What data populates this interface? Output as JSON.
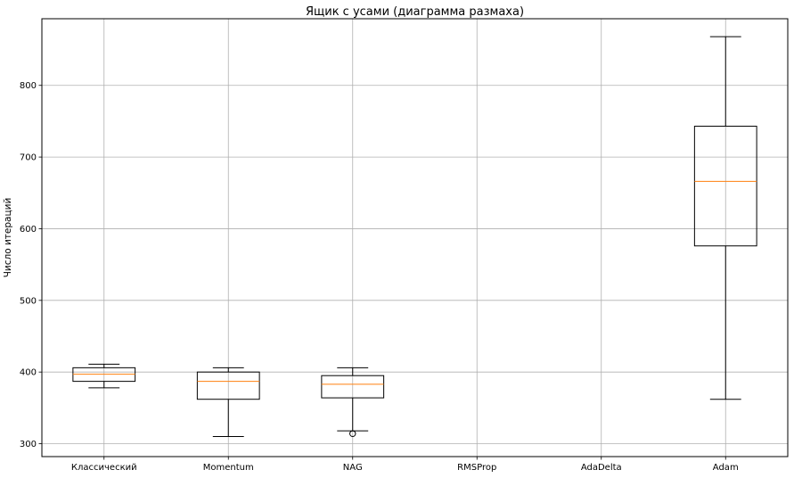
{
  "chart_data": {
    "type": "box",
    "title": "Ящик с усами (диаграмма размаха)",
    "xlabel": "",
    "ylabel": "Число итераций",
    "ylim": [
      282,
      893
    ],
    "yticks": [
      300,
      400,
      500,
      600,
      700,
      800
    ],
    "grid": true,
    "categories": [
      "Классический",
      "Momentum",
      "NAG",
      "RMSProp",
      "AdaDelta",
      "Adam"
    ],
    "boxes": [
      {
        "label": "Классический",
        "whislo": 378,
        "q1": 387,
        "med": 397,
        "q3": 406,
        "whishi": 411,
        "fliers": []
      },
      {
        "label": "Momentum",
        "whislo": 310,
        "q1": 362,
        "med": 387,
        "q3": 400,
        "whishi": 406,
        "fliers": []
      },
      {
        "label": "NAG",
        "whislo": 318,
        "q1": 364,
        "med": 383,
        "q3": 395,
        "whishi": 406,
        "fliers": [
          314
        ]
      },
      {
        "label": "RMSProp",
        "whislo": null,
        "q1": null,
        "med": null,
        "q3": null,
        "whishi": null,
        "fliers": []
      },
      {
        "label": "AdaDelta",
        "whislo": null,
        "q1": null,
        "med": null,
        "q3": null,
        "whishi": null,
        "fliers": []
      },
      {
        "label": "Adam",
        "whislo": 362,
        "q1": 576,
        "med": 666,
        "q3": 743,
        "whishi": 868,
        "fliers": []
      }
    ],
    "colors": {
      "box": "#000000",
      "median": "#ff7f0e",
      "grid": "#b0b0b0"
    }
  }
}
